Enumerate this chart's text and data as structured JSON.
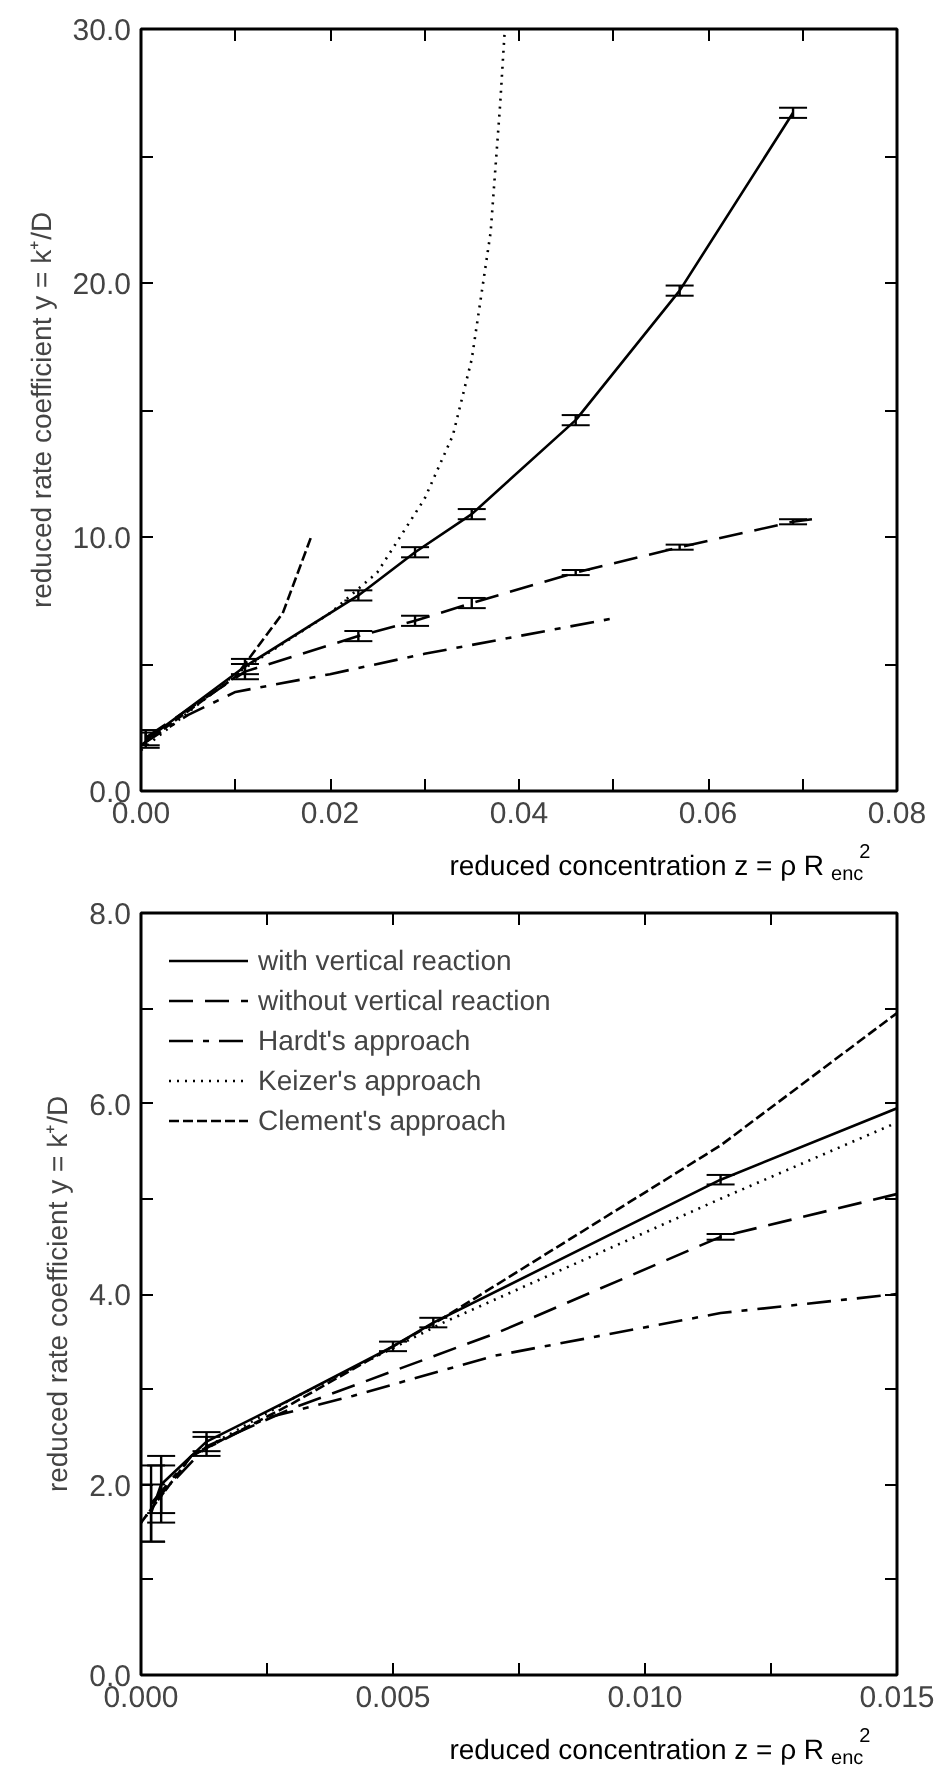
{
  "chart_data": [
    {
      "type": "line",
      "xlabel": "reduced concentration z = ρ R$_{enc}$$^{2}$",
      "ylabel": "reduced rate coefficient y = k⁺/D",
      "xlim": [
        0,
        0.08
      ],
      "ylim": [
        0,
        30
      ],
      "xticks": [
        {
          "value": 0,
          "label": "0.00"
        },
        {
          "value": 0.01,
          "label": null
        },
        {
          "value": 0.02,
          "label": "0.02"
        },
        {
          "value": 0.03,
          "label": null
        },
        {
          "value": 0.04,
          "label": "0.04"
        },
        {
          "value": 0.05,
          "label": null
        },
        {
          "value": 0.06,
          "label": "0.06"
        },
        {
          "value": 0.07,
          "label": null
        },
        {
          "value": 0.08,
          "label": "0.08"
        }
      ],
      "yticks": [
        {
          "value": 0,
          "label": "0.0"
        },
        {
          "value": 5,
          "label": null
        },
        {
          "value": 10,
          "label": "10.0"
        },
        {
          "value": 15,
          "label": null
        },
        {
          "value": 20,
          "label": "20.0"
        },
        {
          "value": 25,
          "label": null
        },
        {
          "value": 30,
          "label": "30.0"
        }
      ],
      "grid": false,
      "legend": false,
      "series": [
        {
          "color": "#000000",
          "line_style": "solid",
          "x": [
            0.0005,
            0.011,
            0.023,
            0.029,
            0.035,
            0.046,
            0.057,
            0.069
          ],
          "values": [
            2.0,
            4.9,
            7.7,
            9.4,
            10.9,
            14.6,
            19.7,
            26.7
          ],
          "errors": [
            0.3,
            0.3,
            0.2,
            0.2,
            0.2,
            0.2,
            0.2,
            0.2
          ]
        },
        {
          "color": "#000000",
          "line_style": "long_dashed",
          "x": [
            0.0005,
            0.011,
            0.023,
            0.029,
            0.035,
            0.046,
            0.057,
            0.069,
            0.071
          ],
          "values": [
            2.1,
            4.7,
            6.1,
            6.7,
            7.4,
            8.6,
            9.6,
            10.6,
            10.7
          ],
          "errors": [
            0.3,
            0.3,
            0.2,
            0.2,
            0.2,
            0.1,
            0.1,
            0.1,
            null
          ]
        },
        {
          "color": "#000000",
          "line_style": "dashdot",
          "x": [
            0,
            0.005,
            0.01,
            0.02,
            0.03,
            0.04,
            0.05
          ],
          "values": [
            1.8,
            3.0,
            3.9,
            4.6,
            5.4,
            6.1,
            6.8
          ]
        },
        {
          "color": "#000000",
          "line_style": "dotted",
          "x": [
            0,
            0.01,
            0.02,
            0.025,
            0.03,
            0.033,
            0.035,
            0.037,
            0.038,
            0.0385
          ],
          "values": [
            1.6,
            4.6,
            7.0,
            8.6,
            11.5,
            14.0,
            17.0,
            22.0,
            27.0,
            30.0
          ]
        },
        {
          "color": "#000000",
          "line_style": "dashed",
          "x": [
            0,
            0.01,
            0.015,
            0.018
          ],
          "values": [
            1.8,
            4.5,
            7.0,
            10.0
          ]
        }
      ]
    },
    {
      "type": "line",
      "xlabel": "reduced concentration z = ρ R$_{enc}$$^{2}$",
      "ylabel": "reduced rate coefficient y = k⁺/D",
      "xlim": [
        0,
        0.015
      ],
      "ylim": [
        0,
        8
      ],
      "xticks": [
        {
          "value": 0,
          "label": "0.000"
        },
        {
          "value": 0.0025,
          "label": null
        },
        {
          "value": 0.005,
          "label": "0.005"
        },
        {
          "value": 0.0075,
          "label": null
        },
        {
          "value": 0.01,
          "label": "0.010"
        },
        {
          "value": 0.0125,
          "label": null
        },
        {
          "value": 0.015,
          "label": "0.015"
        }
      ],
      "yticks": [
        {
          "value": 0,
          "label": "0.0"
        },
        {
          "value": 1,
          "label": null
        },
        {
          "value": 2,
          "label": "2.0"
        },
        {
          "value": 3,
          "label": null
        },
        {
          "value": 4,
          "label": "4.0"
        },
        {
          "value": 5,
          "label": null
        },
        {
          "value": 6,
          "label": "6.0"
        },
        {
          "value": 7,
          "label": null
        },
        {
          "value": 8,
          "label": "8.0"
        }
      ],
      "grid": false,
      "legend": "top left",
      "series": [
        {
          "name": "with vertical reaction",
          "color": "#000000",
          "line_style": "solid",
          "x": [
            0.0002,
            0.0004,
            0.0013,
            0.003,
            0.005,
            0.0058,
            0.0115,
            0.015
          ],
          "values": [
            1.7,
            2.0,
            2.45,
            2.9,
            3.45,
            3.7,
            5.2,
            5.95
          ],
          "errors": [
            0.3,
            0.3,
            0.1,
            null,
            0.05,
            0.05,
            0.05,
            null
          ]
        },
        {
          "name": "without vertical reaction",
          "color": "#000000",
          "line_style": "long_dashed",
          "x": [
            0.0002,
            0.0004,
            0.0013,
            0.003,
            0.0071,
            0.0115,
            0.015
          ],
          "values": [
            1.8,
            1.9,
            2.4,
            2.8,
            3.6,
            4.6,
            5.05
          ],
          "errors": [
            0.4,
            0.3,
            0.1,
            null,
            null,
            0.03,
            null
          ]
        },
        {
          "name": "Hardt's approach",
          "color": "#000000",
          "line_style": "dashdot",
          "x": [
            0.0002,
            0.001,
            0.0025,
            0.0042,
            0.007,
            0.0115,
            0.015
          ],
          "values": [
            1.8,
            2.3,
            2.7,
            2.93,
            3.35,
            3.8,
            4.0
          ]
        },
        {
          "name": "Keizer's approach",
          "color": "#000000",
          "line_style": "dotted",
          "x": [
            0,
            0.001,
            0.003,
            0.006,
            0.0115,
            0.015
          ],
          "values": [
            1.6,
            2.3,
            2.9,
            3.7,
            5.0,
            5.8
          ]
        },
        {
          "name": "Clement's approach",
          "color": "#000000",
          "line_style": "dashed",
          "x": [
            0,
            0.001,
            0.003,
            0.006,
            0.0115,
            0.015
          ],
          "values": [
            1.6,
            2.3,
            2.85,
            3.75,
            5.56,
            6.95
          ]
        }
      ]
    }
  ]
}
